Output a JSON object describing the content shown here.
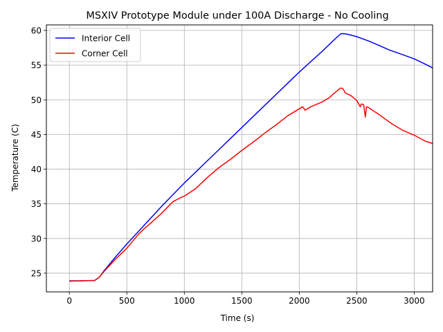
{
  "chart_data": {
    "type": "line",
    "title": "MSXIV Prototype Module under 100A Discharge - No Cooling",
    "xlabel": "Time (s)",
    "ylabel": "Temperature (C)",
    "xlim": [
      -200,
      3160
    ],
    "ylim": [
      22.3,
      60.8
    ],
    "xticks": [
      0,
      500,
      1000,
      1500,
      2000,
      2500,
      3000
    ],
    "yticks": [
      25,
      30,
      35,
      40,
      45,
      50,
      55,
      60
    ],
    "grid": true,
    "legend_position": "top-left",
    "series": [
      {
        "name": "Interior Cell",
        "color": "#0000ff",
        "points": [
          [
            0,
            23.9
          ],
          [
            100,
            23.9
          ],
          [
            220,
            23.95
          ],
          [
            260,
            24.4
          ],
          [
            300,
            25.3
          ],
          [
            400,
            27.3
          ],
          [
            500,
            29.2
          ],
          [
            600,
            31.0
          ],
          [
            700,
            32.8
          ],
          [
            800,
            34.6
          ],
          [
            900,
            36.3
          ],
          [
            1000,
            38.0
          ],
          [
            1100,
            39.6
          ],
          [
            1200,
            41.2
          ],
          [
            1300,
            42.8
          ],
          [
            1400,
            44.4
          ],
          [
            1500,
            46.0
          ],
          [
            1600,
            47.6
          ],
          [
            1700,
            49.2
          ],
          [
            1800,
            50.8
          ],
          [
            1900,
            52.4
          ],
          [
            2000,
            54.0
          ],
          [
            2100,
            55.5
          ],
          [
            2200,
            57.0
          ],
          [
            2300,
            58.6
          ],
          [
            2360,
            59.5
          ],
          [
            2380,
            59.55
          ],
          [
            2420,
            59.45
          ],
          [
            2500,
            59.1
          ],
          [
            2600,
            58.5
          ],
          [
            2700,
            57.8
          ],
          [
            2780,
            57.2
          ],
          [
            2900,
            56.5
          ],
          [
            3000,
            55.9
          ],
          [
            3100,
            55.1
          ],
          [
            3160,
            54.6
          ]
        ]
      },
      {
        "name": "Corner Cell",
        "color": "#ff0000",
        "points": [
          [
            0,
            23.85
          ],
          [
            100,
            23.9
          ],
          [
            220,
            23.95
          ],
          [
            260,
            24.4
          ],
          [
            300,
            25.2
          ],
          [
            400,
            27.0
          ],
          [
            500,
            28.6
          ],
          [
            600,
            30.6
          ],
          [
            650,
            31.4
          ],
          [
            700,
            32.1
          ],
          [
            800,
            33.6
          ],
          [
            900,
            35.3
          ],
          [
            970,
            35.9
          ],
          [
            1000,
            36.1
          ],
          [
            1100,
            37.2
          ],
          [
            1200,
            38.8
          ],
          [
            1300,
            40.2
          ],
          [
            1400,
            41.4
          ],
          [
            1500,
            42.7
          ],
          [
            1600,
            43.9
          ],
          [
            1700,
            45.2
          ],
          [
            1800,
            46.4
          ],
          [
            1900,
            47.7
          ],
          [
            2000,
            48.7
          ],
          [
            2030,
            49.0
          ],
          [
            2050,
            48.5
          ],
          [
            2100,
            49.0
          ],
          [
            2200,
            49.7
          ],
          [
            2260,
            50.3
          ],
          [
            2300,
            50.9
          ],
          [
            2360,
            51.7
          ],
          [
            2380,
            51.6
          ],
          [
            2400,
            51.0
          ],
          [
            2450,
            50.6
          ],
          [
            2500,
            49.9
          ],
          [
            2530,
            49.0
          ],
          [
            2540,
            49.4
          ],
          [
            2560,
            49.3
          ],
          [
            2575,
            47.5
          ],
          [
            2585,
            49.0
          ],
          [
            2600,
            48.9
          ],
          [
            2700,
            47.8
          ],
          [
            2800,
            46.6
          ],
          [
            2900,
            45.6
          ],
          [
            3000,
            44.9
          ],
          [
            3100,
            44.0
          ],
          [
            3160,
            43.7
          ]
        ]
      }
    ]
  }
}
